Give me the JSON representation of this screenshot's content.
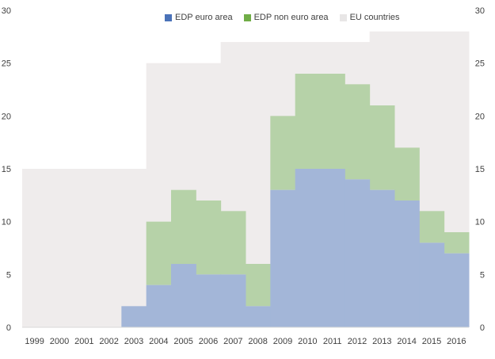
{
  "chart_data": {
    "type": "area",
    "title": "",
    "xlabel": "",
    "ylabel": "",
    "ylim": [
      0,
      30
    ],
    "yticks": [
      0,
      5,
      10,
      15,
      20,
      25,
      30
    ],
    "categories": [
      "1999",
      "2000",
      "2001",
      "2002",
      "2003",
      "2004",
      "2005",
      "2006",
      "2007",
      "2008",
      "2009",
      "2010",
      "2011",
      "2012",
      "2013",
      "2014",
      "2015",
      "2016"
    ],
    "series": [
      {
        "name": "EDP euro area",
        "color": "#a3b6d8",
        "legend_color": "#4a72b8",
        "values": [
          0,
          0,
          0,
          0,
          2,
          4,
          6,
          5,
          5,
          2,
          13,
          15,
          15,
          14,
          13,
          12,
          8,
          7
        ]
      },
      {
        "name": "EDP non euro area",
        "color": "#b6d2a8",
        "legend_color": "#70ad47",
        "values": [
          0,
          0,
          0,
          0,
          0,
          6,
          7,
          7,
          6,
          4,
          7,
          9,
          9,
          9,
          8,
          5,
          3,
          2
        ]
      },
      {
        "name": "EU countries",
        "color": "#efecec",
        "legend_color": "#e8e6e6",
        "values": [
          15,
          15,
          15,
          15,
          15,
          25,
          25,
          25,
          27,
          27,
          27,
          27,
          27,
          27,
          28,
          28,
          28,
          28
        ]
      }
    ],
    "legend_position": "top",
    "grid": false
  }
}
